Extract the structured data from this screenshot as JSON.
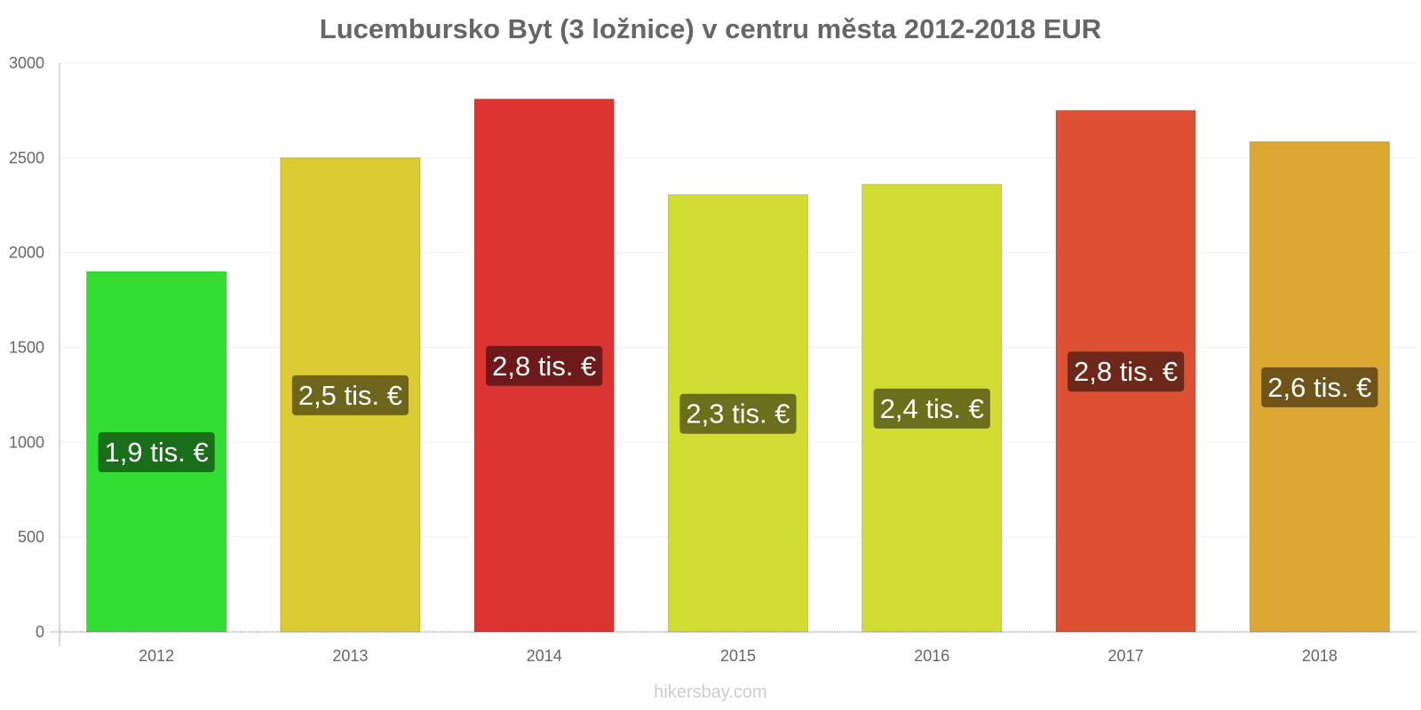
{
  "chart_data": {
    "type": "bar",
    "title": "Lucembursko Byt (3 ložnice) v centru města 2012-2018 EUR",
    "categories": [
      "2012",
      "2013",
      "2014",
      "2015",
      "2016",
      "2017",
      "2018"
    ],
    "values": [
      1900,
      2500,
      2810,
      2305,
      2360,
      2750,
      2585
    ],
    "data_labels": [
      "1,9 tis. €",
      "2,5 tis. €",
      "2,8 tis. €",
      "2,3 tis. €",
      "2,4 tis. €",
      "2,8 tis. €",
      "2,6 tis. €"
    ],
    "bar_colors": [
      "#33dd33",
      "#dbcb33",
      "#dc3333",
      "#d2dd33",
      "#d2dd33",
      "#dd5033",
      "#dca733"
    ],
    "label_bg_colors": [
      "#1a6e1a",
      "#6d651a",
      "#6e1a1a",
      "#6b6e1a",
      "#6b6e1a",
      "#6e281a",
      "#6e531a"
    ],
    "y_ticks": [
      0,
      500,
      1000,
      1500,
      2000,
      2500,
      3000
    ],
    "ylim": [
      0,
      3000
    ],
    "xlabel": "",
    "ylabel": "",
    "grid": true
  },
  "watermark": "hikersbay.com"
}
